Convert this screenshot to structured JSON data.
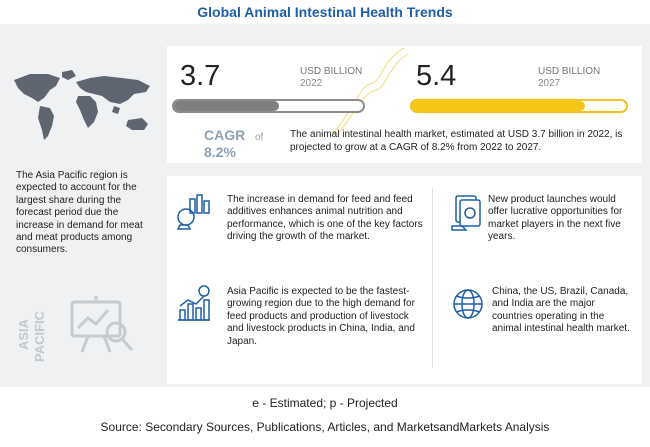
{
  "title": "Global Animal Intestinal Health Trends",
  "region": {
    "label_line1": "ASIA",
    "label_line2": "PACIFIC",
    "text": "The Asia Pacific region is expected to account for the largest share during the forecast period due the increase in demand for meat and meat products among consumers."
  },
  "chart_data": {
    "type": "bar",
    "categories": [
      "2022",
      "2027"
    ],
    "values": [
      3.7,
      5.4
    ],
    "unit": "USD BILLION",
    "cagr": "8.2%"
  },
  "market": {
    "start_value": "3.7",
    "start_unit": "USD BILLION",
    "start_year": "2022",
    "end_value": "5.4",
    "end_unit": "USD BILLION",
    "end_year": "2027",
    "cagr_label": "CAGR",
    "cagr_value": "8.2%",
    "cagr_of": "of",
    "description": "The animal intestinal health market, estimated at USD 3.7 billion in 2022, is projected to grow at a CAGR of 8.2% from 2022 to 2027."
  },
  "colors": {
    "start_bar": "#7f7f7f",
    "end_bar": "#f5c518",
    "title": "#1f5fa8",
    "cagr": "#8aa0b4"
  },
  "points": [
    {
      "icon": "feed-chart-icon",
      "text": "The increase in demand for feed and feed additives enhances animal nutrition and performance, which is one of the key factors driving the growth of the market."
    },
    {
      "icon": "money-icon",
      "text": "New product launches would offer lucrative opportunities for market players in the next five years."
    },
    {
      "icon": "growth-chart-icon",
      "text": "Asia Pacific is expected to be the fastest-growing region due to the high demand for feed products and production of livestock and livestock products in China, India, and Japan."
    },
    {
      "icon": "globe-icon",
      "text": "China, the US, Brazil, Canada, and India are the major countries operating in the animal intestinal health market."
    }
  ],
  "footer": {
    "note": "e - Estimated; p - Projected",
    "source": "Source: Secondary Sources, Publications, Articles, and MarketsandMarkets Analysis"
  }
}
